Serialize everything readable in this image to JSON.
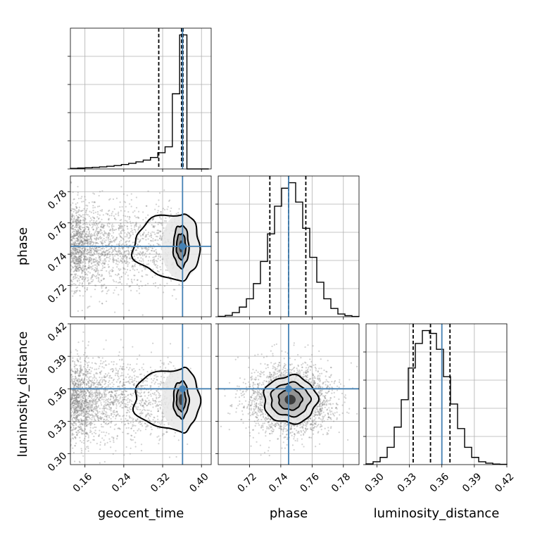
{
  "chart_data": {
    "type": "corner",
    "parameters": [
      {
        "name": "geocent_time",
        "range": [
          0.13,
          0.42
        ],
        "ticks": [
          0.16,
          0.24,
          0.32,
          0.4
        ],
        "tick_labels": [
          "0.16",
          "0.24",
          "0.32",
          "0.40"
        ],
        "truth": 0.361,
        "quantiles": [
          0.312,
          0.359,
          0.362
        ],
        "hist": {
          "edges": [
            0.13,
            0.145,
            0.16,
            0.175,
            0.19,
            0.205,
            0.22,
            0.235,
            0.25,
            0.265,
            0.28,
            0.295,
            0.31,
            0.325,
            0.34,
            0.355,
            0.37,
            0.385,
            0.4,
            0.415
          ],
          "counts": [
            0.004,
            0.006,
            0.008,
            0.011,
            0.014,
            0.018,
            0.023,
            0.03,
            0.038,
            0.048,
            0.06,
            0.078,
            0.11,
            0.15,
            0.51,
            0.91,
            0.0,
            0.0,
            0.0
          ]
        }
      },
      {
        "name": "phase",
        "range": [
          0.7,
          0.79
        ],
        "ticks": [
          0.72,
          0.74,
          0.76,
          0.78
        ],
        "tick_labels": [
          "0.72",
          "0.74",
          "0.76",
          "0.78"
        ],
        "truth": 0.745,
        "quantiles": [
          0.733,
          0.745,
          0.756
        ],
        "hist": {
          "edges": [
            0.7,
            0.7045,
            0.709,
            0.7135,
            0.718,
            0.7225,
            0.727,
            0.7315,
            0.736,
            0.7405,
            0.745,
            0.7495,
            0.754,
            0.7585,
            0.763,
            0.7675,
            0.772,
            0.7765,
            0.781,
            0.7855,
            0.79
          ],
          "counts": [
            0.003,
            0.01,
            0.03,
            0.07,
            0.13,
            0.24,
            0.4,
            0.6,
            0.8,
            0.93,
            0.97,
            0.83,
            0.64,
            0.43,
            0.25,
            0.13,
            0.06,
            0.02,
            0.008,
            0.002
          ]
        }
      },
      {
        "name": "luminosity_distance",
        "range": [
          0.29,
          0.42
        ],
        "ticks": [
          0.3,
          0.33,
          0.36,
          0.39,
          0.42
        ],
        "tick_labels": [
          "0.30",
          "0.33",
          "0.36",
          "0.39",
          "0.42"
        ],
        "truth": 0.36,
        "quantiles": [
          0.3335,
          0.3495,
          0.3675
        ],
        "hist": {
          "edges": [
            0.29,
            0.2965,
            0.303,
            0.3095,
            0.316,
            0.3225,
            0.329,
            0.3355,
            0.342,
            0.3485,
            0.355,
            0.3615,
            0.368,
            0.3745,
            0.381,
            0.3875,
            0.394,
            0.4005,
            0.407,
            0.4135,
            0.42
          ],
          "counts": [
            0.005,
            0.02,
            0.05,
            0.12,
            0.26,
            0.45,
            0.67,
            0.84,
            0.93,
            0.91,
            0.8,
            0.61,
            0.42,
            0.25,
            0.12,
            0.05,
            0.02,
            0.01,
            0.004,
            0.002
          ]
        }
      }
    ],
    "scatter_samples": [
      {
        "x_param": "geocent_time",
        "y_param": "phase",
        "truth": [
          0.361,
          0.745
        ],
        "mode": [
          0.358,
          0.745
        ],
        "contour_spread": {
          "x": [
            0.0045,
            0.0095,
            0.016,
            0.04
          ],
          "y": [
            0.0038,
            0.0082,
            0.0135,
            0.021
          ]
        },
        "sample_count": 2200
      },
      {
        "x_param": "geocent_time",
        "y_param": "luminosity_distance",
        "truth": [
          0.361,
          0.36
        ],
        "mode": [
          0.358,
          0.35
        ],
        "contour_spread": {
          "x": [
            0.0045,
            0.0095,
            0.016,
            0.04
          ],
          "y": [
            0.005,
            0.0105,
            0.017,
            0.029
          ]
        },
        "sample_count": 2200
      },
      {
        "x_param": "phase",
        "y_param": "luminosity_distance",
        "truth": [
          0.745,
          0.36
        ],
        "mode": [
          0.746,
          0.35
        ],
        "contour_spread": {
          "x": [
            0.0035,
            0.0075,
            0.0125,
            0.018
          ],
          "y": [
            0.0045,
            0.0095,
            0.0155,
            0.022
          ]
        },
        "sample_count": 2600
      }
    ],
    "xlabels": [
      "geocent_time",
      "phase",
      "luminosity_distance"
    ],
    "ylabels": [
      "",
      "phase",
      "luminosity_distance"
    ],
    "grid": true,
    "truth_color": "#4682b4"
  },
  "labels": {
    "xlabel_1": "geocent_time",
    "xlabel_2": "phase",
    "xlabel_3": "luminosity_distance",
    "ylabel_2": "phase",
    "ylabel_3": "luminosity_distance"
  }
}
